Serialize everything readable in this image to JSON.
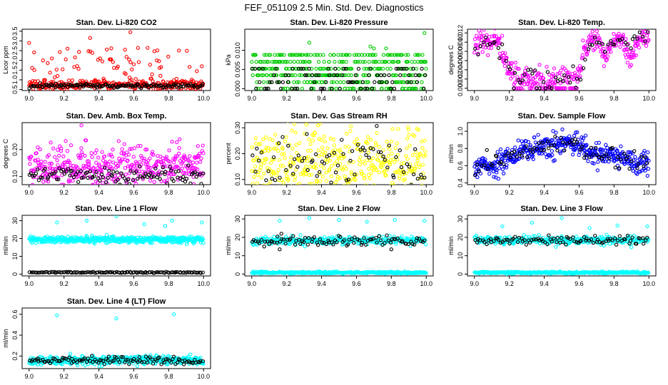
{
  "figure": {
    "title": "FEF_051109  2.5 Min. Std. Dev. Diagnostics",
    "x_ticks": [
      "9.0",
      "9.2",
      "9.4",
      "9.6",
      "9.8",
      "10.0"
    ]
  },
  "colors": {
    "red": "#ff0000",
    "green": "#00cc00",
    "magenta": "#ff00ff",
    "yellow": "#ffff00",
    "blue": "#0000ff",
    "cyan": "#00ffff",
    "black": "#000000"
  },
  "chart_data": [
    {
      "type": "scatter",
      "title": "Stan. Dev. Li-820 CO2",
      "ylabel": "Licor ppm",
      "x_range": [
        9.0,
        10.0
      ],
      "ylim": [
        0.45,
        3.6
      ],
      "yticks": [
        0.5,
        1.0,
        1.5,
        2.0,
        2.5,
        3.0,
        3.5
      ],
      "ytick_labels": [
        "0.5",
        "1.0",
        "1.5",
        "2.0",
        "2.5",
        "3.0",
        "3.5"
      ],
      "series": [
        {
          "name": "primary",
          "color": "red",
          "gen": {
            "kind": "noisy",
            "base": 0.75,
            "amp": 0.12,
            "n": 360,
            "outlier_rate": 0.18,
            "outlier_hi": 1.9
          },
          "points": [
            [
              9.0,
              2.9
            ],
            [
              9.58,
              3.45
            ],
            [
              9.35,
              3.15
            ],
            [
              9.22,
              2.6
            ],
            [
              9.55,
              2.55
            ],
            [
              9.08,
              2.0
            ],
            [
              9.13,
              2.1
            ],
            [
              9.47,
              2.05
            ],
            [
              9.99,
              1.7
            ],
            [
              9.03,
              1.5
            ],
            [
              9.6,
              1.8
            ]
          ]
        },
        {
          "name": "secondary",
          "color": "black",
          "gen": {
            "kind": "noisy",
            "base": 0.7,
            "amp": 0.06,
            "n": 130
          }
        }
      ]
    },
    {
      "type": "scatter",
      "title": "Stan. Dev. Li-820 Pressure",
      "ylabel": "kPa",
      "x_range": [
        9.0,
        10.0
      ],
      "ylim": [
        -0.0005,
        0.0155
      ],
      "yticks": [
        0.0,
        0.005,
        0.01
      ],
      "ytick_labels": [
        "0.000",
        "0.005",
        "0.010"
      ],
      "series": [
        {
          "name": "primary",
          "color": "green",
          "gen": {
            "kind": "levels",
            "levels": [
              0.0,
              0.0017,
              0.0035,
              0.0052,
              0.007,
              0.0088
            ],
            "n": 420
          },
          "points": [
            [
              9.99,
              0.0145
            ],
            [
              9.33,
              0.012
            ],
            [
              9.68,
              0.011
            ],
            [
              9.7,
              0.0105
            ],
            [
              9.77,
              0.0105
            ]
          ]
        },
        {
          "name": "secondary",
          "color": "black",
          "gen": {
            "kind": "levels",
            "levels": [
              0.0,
              0.0017,
              0.0035,
              0.0052
            ],
            "n": 90
          }
        }
      ]
    },
    {
      "type": "scatter",
      "title": "Stan. Dev. Li-820 Temp.",
      "ylabel": "degrees C",
      "x_range": [
        9.0,
        10.0
      ],
      "ylim": [
        -0.0005,
        0.0128
      ],
      "yticks": [
        0.0,
        0.002,
        0.004,
        0.006,
        0.008,
        0.01,
        0.012
      ],
      "ytick_labels": [
        "0.000",
        "0.002",
        "0.004",
        "0.006",
        "0.008",
        "0.010",
        "0.012"
      ],
      "series": [
        {
          "name": "primary",
          "color": "magenta",
          "gen": {
            "kind": "wave",
            "knots": [
              [
                9.0,
                0.009
              ],
              [
                9.04,
                0.011
              ],
              [
                9.08,
                0.0095
              ],
              [
                9.13,
                0.011
              ],
              [
                9.18,
                0.005
              ],
              [
                9.23,
                0.003
              ],
              [
                9.27,
                0.0022
              ],
              [
                9.4,
                0.0022
              ],
              [
                9.52,
                0.0022
              ],
              [
                9.6,
                0.0022
              ],
              [
                9.63,
                0.009
              ],
              [
                9.7,
                0.011
              ],
              [
                9.75,
                0.0065
              ],
              [
                9.8,
                0.011
              ],
              [
                9.85,
                0.0095
              ],
              [
                9.9,
                0.006
              ],
              [
                9.95,
                0.011
              ],
              [
                10.0,
                0.011
              ]
            ],
            "amp": 0.0012,
            "n": 380,
            "floor": 0.0,
            "floor_rate": 0.22,
            "floor_range": [
              9.22,
              9.6
            ]
          }
        },
        {
          "name": "secondary",
          "color": "black",
          "gen": {
            "kind": "wave",
            "knots": [
              [
                9.0,
                0.009
              ],
              [
                9.1,
                0.011
              ],
              [
                9.18,
                0.006
              ],
              [
                9.23,
                0.0025
              ],
              [
                9.6,
                0.0022
              ],
              [
                9.66,
                0.009
              ],
              [
                9.85,
                0.01
              ],
              [
                10.0,
                0.011
              ]
            ],
            "amp": 0.001,
            "n": 70,
            "floor": 0.0,
            "floor_rate": 0.2,
            "floor_range": [
              9.22,
              9.6
            ]
          }
        }
      ]
    },
    {
      "type": "scatter",
      "title": "Stan. Dev. Amb. Box Temp.",
      "ylabel": "degrees C",
      "x_range": [
        9.0,
        10.0
      ],
      "ylim": [
        0.07,
        0.3
      ],
      "yticks": [
        0.1,
        0.2
      ],
      "ytick_labels": [
        "0.10",
        "0.20"
      ],
      "series": [
        {
          "name": "primary",
          "color": "magenta",
          "gen": {
            "kind": "noisy",
            "base": 0.135,
            "amp": 0.035,
            "n": 420,
            "outlier_rate": 0.08,
            "outlier_hi": 0.1
          },
          "points": [
            [
              9.3,
              0.29
            ]
          ]
        },
        {
          "name": "secondary",
          "color": "black",
          "gen": {
            "kind": "noisy",
            "base": 0.105,
            "amp": 0.015,
            "n": 110
          }
        }
      ]
    },
    {
      "type": "scatter",
      "title": "Stan. Dev. Gas Stream RH",
      "ylabel": "percent",
      "x_range": [
        9.0,
        10.0
      ],
      "ylim": [
        0.08,
        0.32
      ],
      "yticks": [
        0.1,
        0.2,
        0.3
      ],
      "ytick_labels": [
        "0.10",
        "0.20",
        "0.30"
      ],
      "series": [
        {
          "name": "primary",
          "color": "yellow",
          "gen": {
            "kind": "noisy",
            "base": 0.16,
            "amp": 0.07,
            "n": 420
          }
        },
        {
          "name": "secondary",
          "color": "black",
          "gen": {
            "kind": "noisy",
            "base": 0.16,
            "amp": 0.05,
            "n": 75
          }
        }
      ]
    },
    {
      "type": "scatter",
      "title": "Stan. Dev. Sample Flow",
      "ylabel": "ml/min",
      "x_range": [
        9.0,
        10.0
      ],
      "ylim": [
        0.38,
        1.1
      ],
      "yticks": [
        0.4,
        0.6,
        0.8,
        1.0
      ],
      "ytick_labels": [
        "0.4",
        "0.6",
        "0.8",
        "1.0"
      ],
      "series": [
        {
          "name": "primary",
          "color": "blue",
          "gen": {
            "kind": "wave",
            "knots": [
              [
                9.0,
                0.6
              ],
              [
                9.1,
                0.6
              ],
              [
                9.2,
                0.7
              ],
              [
                9.3,
                0.78
              ],
              [
                9.45,
                0.84
              ],
              [
                9.55,
                0.87
              ],
              [
                9.62,
                0.84
              ],
              [
                9.66,
                0.72
              ],
              [
                9.75,
                0.74
              ],
              [
                9.85,
                0.7
              ],
              [
                9.95,
                0.62
              ],
              [
                10.0,
                0.63
              ]
            ],
            "amp": 0.07,
            "n": 440
          }
        },
        {
          "name": "secondary",
          "color": "black",
          "gen": {
            "kind": "wave",
            "knots": [
              [
                9.0,
                0.6
              ],
              [
                9.2,
                0.7
              ],
              [
                9.4,
                0.82
              ],
              [
                9.55,
                0.88
              ],
              [
                9.65,
                0.75
              ],
              [
                9.8,
                0.72
              ],
              [
                10.0,
                0.64
              ]
            ],
            "amp": 0.06,
            "n": 80
          }
        }
      ]
    },
    {
      "type": "scatter",
      "title": "Stan. Dev. Line 1 Flow",
      "ylabel": "ml/min",
      "x_range": [
        9.0,
        10.0
      ],
      "ylim": [
        -1,
        33
      ],
      "yticks": [
        0,
        10,
        20,
        30
      ],
      "ytick_labels": [
        "0",
        "10",
        "20",
        "30"
      ],
      "series": [
        {
          "name": "primary",
          "color": "cyan",
          "gen": {
            "kind": "noisy",
            "base": 19.3,
            "amp": 0.9,
            "n": 430
          },
          "points": [
            [
              9.16,
              29
            ],
            [
              9.33,
              30
            ],
            [
              9.5,
              32.5
            ],
            [
              9.66,
              28
            ],
            [
              9.78,
              27
            ],
            [
              9.82,
              30
            ],
            [
              9.99,
              29
            ]
          ]
        },
        {
          "name": "secondary",
          "color": "black",
          "gen": {
            "kind": "noisy",
            "base": 1.0,
            "amp": 0.15,
            "n": 120
          }
        }
      ]
    },
    {
      "type": "scatter",
      "title": "Stan. Dev. Line 2 Flow",
      "ylabel": "ml/min",
      "x_range": [
        9.0,
        10.0
      ],
      "ylim": [
        -1,
        32
      ],
      "yticks": [
        0,
        10,
        20,
        30
      ],
      "ytick_labels": [
        "0",
        "10",
        "20",
        "30"
      ],
      "series": [
        {
          "name": "primary",
          "color": "cyan",
          "gen": {
            "kind": "noisy",
            "base": 18.3,
            "amp": 1.0,
            "n": 320
          },
          "points": [
            [
              9.16,
              29
            ],
            [
              9.33,
              30.5
            ],
            [
              9.5,
              29.5
            ],
            [
              9.66,
              28.5
            ],
            [
              9.82,
              29.5
            ],
            [
              9.99,
              29
            ]
          ]
        },
        {
          "name": "floor",
          "color": "cyan",
          "gen": {
            "kind": "noisy",
            "base": 0.8,
            "amp": 0.25,
            "n": 330
          }
        },
        {
          "name": "secondary",
          "color": "black",
          "gen": {
            "kind": "noisy",
            "base": 18.0,
            "amp": 1.3,
            "n": 95
          },
          "points": [
            [
              9.16,
              13.5
            ],
            [
              9.8,
              13.5
            ],
            [
              9.17,
              22
            ]
          ]
        }
      ]
    },
    {
      "type": "scatter",
      "title": "Stan. Dev. Line 3 Flow",
      "ylabel": "ml/min",
      "x_range": [
        9.0,
        10.0
      ],
      "ylim": [
        -1,
        32
      ],
      "yticks": [
        0,
        10,
        20,
        30
      ],
      "ytick_labels": [
        "0",
        "10",
        "20",
        "30"
      ],
      "series": [
        {
          "name": "primary",
          "color": "cyan",
          "gen": {
            "kind": "noisy",
            "base": 18.5,
            "amp": 1.1,
            "n": 320
          },
          "points": [
            [
              9.16,
              26
            ],
            [
              9.33,
              28
            ],
            [
              9.5,
              30.5
            ],
            [
              9.66,
              25
            ],
            [
              9.82,
              26.5
            ],
            [
              9.99,
              26
            ]
          ]
        },
        {
          "name": "floor",
          "color": "cyan",
          "gen": {
            "kind": "noisy",
            "base": 0.8,
            "amp": 0.25,
            "n": 330
          }
        },
        {
          "name": "secondary",
          "color": "black",
          "gen": {
            "kind": "noisy",
            "base": 18.5,
            "amp": 1.2,
            "n": 95
          }
        }
      ]
    },
    {
      "type": "scatter",
      "title": "Stan. Dev. Line 4 (LT) Flow",
      "ylabel": "ml/min",
      "x_range": [
        9.0,
        10.0
      ],
      "ylim": [
        0.08,
        0.66
      ],
      "yticks": [
        0.2,
        0.4,
        0.6
      ],
      "ytick_labels": [
        "0.2",
        "0.4",
        "0.6"
      ],
      "series": [
        {
          "name": "primary",
          "color": "cyan",
          "gen": {
            "kind": "noisy",
            "base": 0.16,
            "amp": 0.02,
            "n": 430
          },
          "points": [
            [
              9.16,
              0.59
            ],
            [
              9.5,
              0.56
            ],
            [
              9.83,
              0.6
            ]
          ]
        },
        {
          "name": "secondary",
          "color": "black",
          "gen": {
            "kind": "noisy",
            "base": 0.16,
            "amp": 0.02,
            "n": 110
          }
        }
      ]
    }
  ]
}
